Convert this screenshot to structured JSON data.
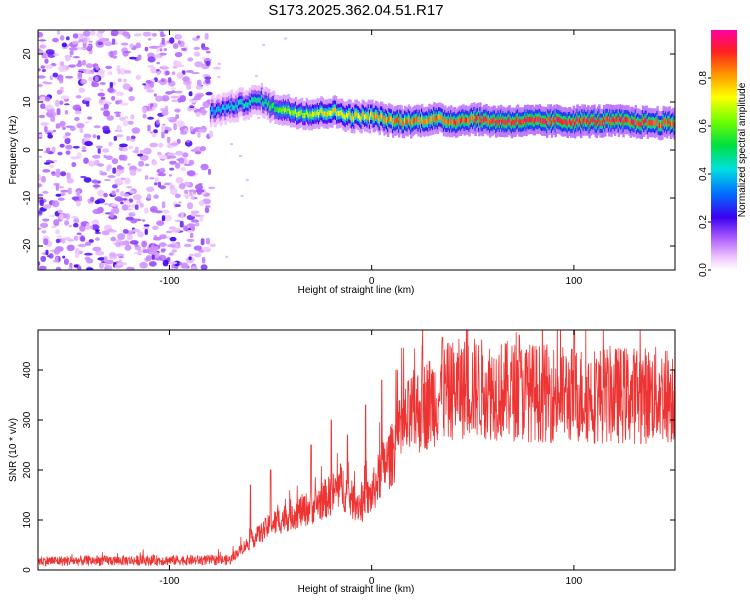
{
  "title": "S173.2025.362.04.51.R17",
  "chart_data": [
    {
      "type": "heatmap",
      "name": "spectrogram",
      "xlabel": "Height of straight line (km)",
      "ylabel": "Frequency (Hz)",
      "xlim": [
        -165,
        150
      ],
      "ylim": [
        -25,
        25
      ],
      "x_ticks": [
        -100,
        0,
        100
      ],
      "x_tick_labels": [
        "-100",
        "0",
        "100"
      ],
      "y_ticks": [
        -20,
        -10,
        0,
        10,
        20
      ],
      "y_tick_labels": [
        "-20",
        "-10",
        "0",
        "10",
        "20"
      ],
      "colorbar": {
        "label": "Normalized spectral amplitude",
        "range": [
          0,
          1
        ],
        "ticks": [
          0.0,
          0.2,
          0.4,
          0.6,
          0.8
        ],
        "tick_labels": [
          "0.0",
          "0.2",
          "0.4",
          "0.6",
          "0.8"
        ]
      },
      "noise_region_x": [
        -165,
        -80
      ],
      "signal_track": {
        "x": [
          -80,
          -70,
          -60,
          -55,
          -50,
          -40,
          -30,
          -20,
          -10,
          0,
          10,
          20,
          30,
          40,
          50,
          60,
          80,
          100,
          120,
          150
        ],
        "frequency": [
          8,
          9,
          10,
          10.5,
          9,
          8,
          7.5,
          8,
          7,
          7,
          6,
          6,
          6.5,
          6,
          6.5,
          6,
          6,
          6,
          6,
          5.5
        ],
        "peak_amplitude": [
          0.4,
          0.45,
          0.5,
          0.5,
          0.6,
          0.7,
          0.75,
          0.8,
          0.8,
          0.85,
          0.9,
          0.9,
          0.9,
          0.95,
          0.95,
          1.0,
          1.0,
          1.0,
          1.0,
          0.95
        ]
      }
    },
    {
      "type": "line",
      "name": "snr",
      "xlabel": "Height of straight line (km)",
      "ylabel": "SNR (10 * v/v)",
      "xlim": [
        -165,
        150
      ],
      "ylim": [
        0,
        480
      ],
      "x_ticks": [
        -100,
        0,
        100
      ],
      "x_tick_labels": [
        "-100",
        "0",
        "100"
      ],
      "y_ticks": [
        0,
        100,
        200,
        300,
        400
      ],
      "y_tick_labels": [
        "0",
        "100",
        "200",
        "300",
        "400"
      ],
      "series": [
        {
          "name": "SNR",
          "color": "#ee3333",
          "trend_x": [
            -165,
            -70,
            -65,
            -50,
            -40,
            -30,
            -20,
            -15,
            -10,
            -5,
            0,
            5,
            10,
            15,
            20,
            30,
            40,
            50,
            60,
            80,
            100,
            150
          ],
          "trend_y": [
            18,
            20,
            40,
            90,
            110,
            125,
            150,
            170,
            140,
            130,
            150,
            200,
            230,
            280,
            310,
            340,
            360,
            365,
            360,
            355,
            350,
            350
          ],
          "peak_x": [
            -60,
            -50,
            -30,
            -20,
            -12,
            -3,
            5,
            12,
            25,
            35,
            73,
            100
          ],
          "peak_y": [
            170,
            200,
            250,
            300,
            270,
            330,
            380,
            400,
            450,
            465,
            470,
            480
          ]
        }
      ]
    }
  ]
}
